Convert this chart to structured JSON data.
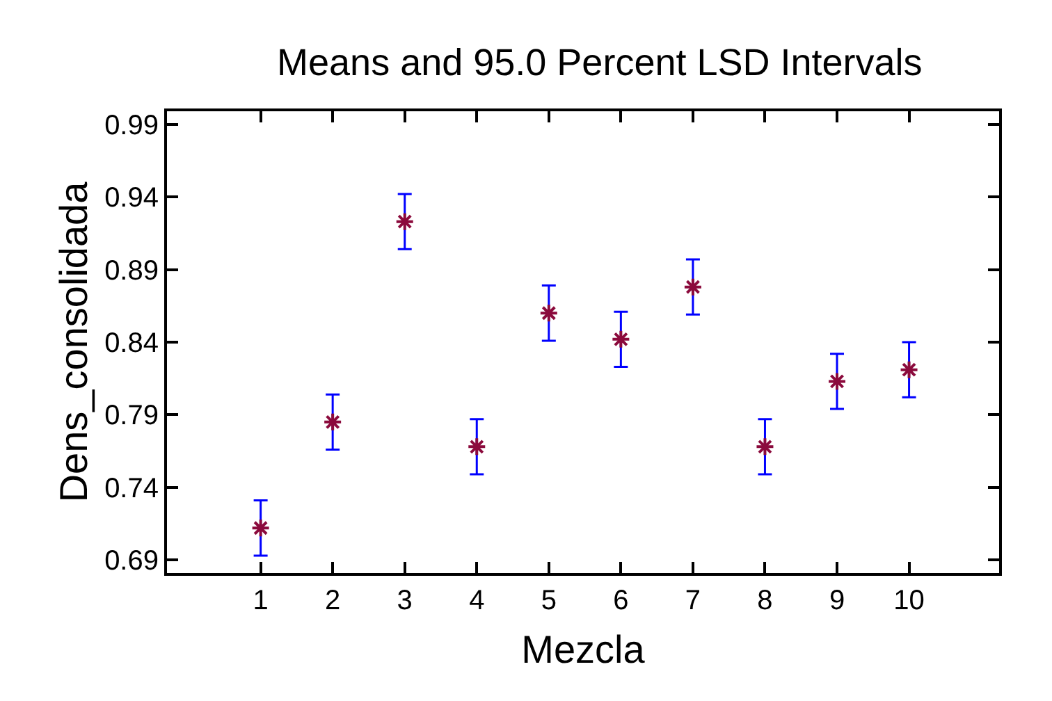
{
  "chart_data": {
    "type": "scatter",
    "title": "Means and 95.0 Percent LSD Intervals",
    "xlabel": "Mezcla",
    "ylabel": "Dens_consolidada",
    "x": [
      1,
      2,
      3,
      4,
      5,
      6,
      7,
      8,
      9,
      10
    ],
    "series": [
      {
        "color": "#8b0a3c",
        "values": [
          0.712,
          0.785,
          0.923,
          0.768,
          0.86,
          0.842,
          0.878,
          0.768,
          0.813,
          0.821
        ],
        "errors": [
          0.019,
          0.019,
          0.019,
          0.019,
          0.019,
          0.019,
          0.019,
          0.019,
          0.019,
          0.019
        ]
      }
    ],
    "xlim": [
      -0.3,
      11.25
    ],
    "xticks": [
      1,
      2,
      3,
      4,
      5,
      6,
      7,
      8,
      9,
      10
    ],
    "ylim": [
      0.681,
      0.999
    ],
    "yticks": [
      0.69,
      0.74,
      0.79,
      0.84,
      0.89,
      0.94,
      0.99
    ],
    "marker": "cross"
  }
}
